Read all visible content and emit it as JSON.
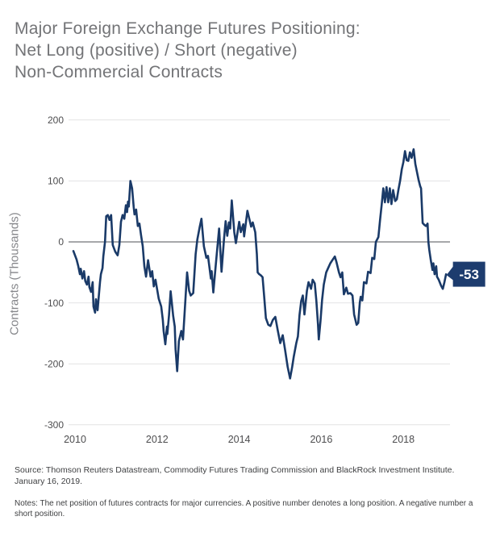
{
  "title": {
    "line1": "Major Foreign Exchange Futures Positioning:",
    "line2": "Net Long (positive) / Short (negative)",
    "line3": "Non-Commercial Contracts"
  },
  "source_line1": "Source: Thomson Reuters Datastream, Commodity Futures Trading Commission and BlackRock Investment Institute.",
  "source_line2": "January 16, 2019.",
  "notes": "Notes: The net position of futures contracts for major currencies. A positive number denotes a long position. A negative number a short position.",
  "colors": {
    "line": "#1a3a68",
    "callout_bg": "#1d3c6e",
    "callout_text": "#ffffff",
    "grid": "#e3e3e4",
    "zero_line": "#8a8b8e",
    "title_text": "#737477",
    "tick_text": "#4d4d4f"
  },
  "chart_data": {
    "type": "line",
    "title": "Major Foreign Exchange Futures Positioning: Net Long (positive) / Short (negative) Non-Commercial Contracts",
    "xlabel": "",
    "ylabel": "Contracts (Thousands)",
    "y_ticks": [
      200,
      100,
      0,
      -100,
      -200,
      -300
    ],
    "x_ticks": [
      2010,
      2012,
      2014,
      2016,
      2018
    ],
    "ylim": [
      -300,
      200
    ],
    "xlim": [
      2009.84,
      2019.17
    ],
    "grid": true,
    "zero_line": true,
    "legend": "none",
    "end_label": "-53",
    "end_value": -53,
    "units": "thousands of contracts",
    "series": [
      {
        "name": "Net non-commercial FX futures contracts",
        "points": [
          [
            2009.96,
            -15
          ],
          [
            2010.04,
            -29
          ],
          [
            2010.08,
            -40
          ],
          [
            2010.12,
            -53
          ],
          [
            2010.14,
            -44
          ],
          [
            2010.18,
            -60
          ],
          [
            2010.22,
            -48
          ],
          [
            2010.25,
            -64
          ],
          [
            2010.29,
            -70
          ],
          [
            2010.33,
            -57
          ],
          [
            2010.35,
            -74
          ],
          [
            2010.39,
            -82
          ],
          [
            2010.43,
            -66
          ],
          [
            2010.45,
            -106
          ],
          [
            2010.49,
            -116
          ],
          [
            2010.51,
            -94
          ],
          [
            2010.55,
            -112
          ],
          [
            2010.61,
            -66
          ],
          [
            2010.63,
            -53
          ],
          [
            2010.67,
            -43
          ],
          [
            2010.69,
            -24
          ],
          [
            2010.73,
            0
          ],
          [
            2010.76,
            42
          ],
          [
            2010.8,
            44
          ],
          [
            2010.84,
            36
          ],
          [
            2010.88,
            44
          ],
          [
            2010.92,
            -5
          ],
          [
            2010.98,
            -16
          ],
          [
            2011.04,
            -22
          ],
          [
            2011.08,
            -5
          ],
          [
            2011.12,
            33
          ],
          [
            2011.16,
            44
          ],
          [
            2011.2,
            38
          ],
          [
            2011.24,
            60
          ],
          [
            2011.27,
            49
          ],
          [
            2011.29,
            66
          ],
          [
            2011.31,
            58
          ],
          [
            2011.35,
            100
          ],
          [
            2011.39,
            88
          ],
          [
            2011.43,
            57
          ],
          [
            2011.45,
            45
          ],
          [
            2011.49,
            53
          ],
          [
            2011.53,
            26
          ],
          [
            2011.57,
            30
          ],
          [
            2011.61,
            11
          ],
          [
            2011.65,
            -7
          ],
          [
            2011.69,
            -40
          ],
          [
            2011.73,
            -57
          ],
          [
            2011.78,
            -30
          ],
          [
            2011.84,
            -57
          ],
          [
            2011.88,
            -48
          ],
          [
            2011.92,
            -73
          ],
          [
            2011.96,
            -62
          ],
          [
            2012.04,
            -93
          ],
          [
            2012.1,
            -106
          ],
          [
            2012.14,
            -128
          ],
          [
            2012.16,
            -146
          ],
          [
            2012.2,
            -168
          ],
          [
            2012.24,
            -139
          ],
          [
            2012.25,
            -151
          ],
          [
            2012.29,
            -120
          ],
          [
            2012.33,
            -81
          ],
          [
            2012.39,
            -121
          ],
          [
            2012.43,
            -139
          ],
          [
            2012.45,
            -176
          ],
          [
            2012.49,
            -212
          ],
          [
            2012.53,
            -163
          ],
          [
            2012.59,
            -146
          ],
          [
            2012.63,
            -160
          ],
          [
            2012.69,
            -95
          ],
          [
            2012.73,
            -50
          ],
          [
            2012.78,
            -80
          ],
          [
            2012.82,
            -88
          ],
          [
            2012.88,
            -84
          ],
          [
            2012.94,
            -20
          ],
          [
            2012.98,
            4
          ],
          [
            2013.04,
            25
          ],
          [
            2013.08,
            38
          ],
          [
            2013.14,
            -7
          ],
          [
            2013.2,
            -26
          ],
          [
            2013.24,
            -23
          ],
          [
            2013.31,
            -60
          ],
          [
            2013.33,
            -48
          ],
          [
            2013.37,
            -83
          ],
          [
            2013.43,
            -37
          ],
          [
            2013.51,
            22
          ],
          [
            2013.57,
            -49
          ],
          [
            2013.63,
            5
          ],
          [
            2013.67,
            34
          ],
          [
            2013.71,
            10
          ],
          [
            2013.75,
            32
          ],
          [
            2013.78,
            22
          ],
          [
            2013.82,
            68
          ],
          [
            2013.88,
            16
          ],
          [
            2013.92,
            -2
          ],
          [
            2014,
            33
          ],
          [
            2014.04,
            16
          ],
          [
            2014.1,
            29
          ],
          [
            2014.12,
            9
          ],
          [
            2014.2,
            51
          ],
          [
            2014.29,
            25
          ],
          [
            2014.33,
            32
          ],
          [
            2014.39,
            16
          ],
          [
            2014.43,
            -20
          ],
          [
            2014.45,
            -50
          ],
          [
            2014.49,
            -53
          ],
          [
            2014.53,
            -55
          ],
          [
            2014.57,
            -58
          ],
          [
            2014.61,
            -90
          ],
          [
            2014.65,
            -125
          ],
          [
            2014.71,
            -136
          ],
          [
            2014.76,
            -138
          ],
          [
            2014.82,
            -128
          ],
          [
            2014.88,
            -123
          ],
          [
            2014.94,
            -145
          ],
          [
            2015,
            -166
          ],
          [
            2015.06,
            -153
          ],
          [
            2015.12,
            -178
          ],
          [
            2015.18,
            -205
          ],
          [
            2015.24,
            -224
          ],
          [
            2015.29,
            -205
          ],
          [
            2015.33,
            -188
          ],
          [
            2015.39,
            -166
          ],
          [
            2015.43,
            -155
          ],
          [
            2015.47,
            -120
          ],
          [
            2015.51,
            -97
          ],
          [
            2015.55,
            -88
          ],
          [
            2015.59,
            -119
          ],
          [
            2015.65,
            -80
          ],
          [
            2015.69,
            -66
          ],
          [
            2015.75,
            -77
          ],
          [
            2015.79,
            -62
          ],
          [
            2015.84,
            -68
          ],
          [
            2015.88,
            -97
          ],
          [
            2015.92,
            -135
          ],
          [
            2015.94,
            -160
          ],
          [
            2015.98,
            -130
          ],
          [
            2016.02,
            -95
          ],
          [
            2016.06,
            -70
          ],
          [
            2016.12,
            -50
          ],
          [
            2016.16,
            -44
          ],
          [
            2016.22,
            -35
          ],
          [
            2016.27,
            -30
          ],
          [
            2016.33,
            -24
          ],
          [
            2016.37,
            -33
          ],
          [
            2016.43,
            -50
          ],
          [
            2016.47,
            -58
          ],
          [
            2016.51,
            -50
          ],
          [
            2016.55,
            -86
          ],
          [
            2016.61,
            -75
          ],
          [
            2016.65,
            -85
          ],
          [
            2016.71,
            -84
          ],
          [
            2016.76,
            -88
          ],
          [
            2016.8,
            -119
          ],
          [
            2016.86,
            -136
          ],
          [
            2016.9,
            -133
          ],
          [
            2016.94,
            -99
          ],
          [
            2016.96,
            -90
          ],
          [
            2017,
            -96
          ],
          [
            2017.04,
            -66
          ],
          [
            2017.1,
            -68
          ],
          [
            2017.14,
            -49
          ],
          [
            2017.2,
            -51
          ],
          [
            2017.24,
            -26
          ],
          [
            2017.29,
            -28
          ],
          [
            2017.33,
            0
          ],
          [
            2017.39,
            8
          ],
          [
            2017.43,
            35
          ],
          [
            2017.47,
            60
          ],
          [
            2017.51,
            88
          ],
          [
            2017.55,
            65
          ],
          [
            2017.59,
            90
          ],
          [
            2017.63,
            65
          ],
          [
            2017.67,
            88
          ],
          [
            2017.71,
            62
          ],
          [
            2017.75,
            85
          ],
          [
            2017.8,
            67
          ],
          [
            2017.84,
            70
          ],
          [
            2017.88,
            86
          ],
          [
            2017.92,
            100
          ],
          [
            2017.96,
            119
          ],
          [
            2018,
            131
          ],
          [
            2018.04,
            149
          ],
          [
            2018.08,
            134
          ],
          [
            2018.12,
            133
          ],
          [
            2018.16,
            147
          ],
          [
            2018.2,
            138
          ],
          [
            2018.25,
            152
          ],
          [
            2018.29,
            128
          ],
          [
            2018.33,
            115
          ],
          [
            2018.37,
            102
          ],
          [
            2018.41,
            91
          ],
          [
            2018.43,
            88
          ],
          [
            2018.47,
            31
          ],
          [
            2018.51,
            28
          ],
          [
            2018.55,
            26
          ],
          [
            2018.59,
            30
          ],
          [
            2018.61,
            0
          ],
          [
            2018.63,
            -13
          ],
          [
            2018.67,
            -31
          ],
          [
            2018.71,
            -46
          ],
          [
            2018.73,
            -35
          ],
          [
            2018.76,
            -53
          ],
          [
            2018.8,
            -40
          ],
          [
            2018.82,
            -57
          ],
          [
            2018.86,
            -62
          ],
          [
            2018.92,
            -72
          ],
          [
            2018.96,
            -77
          ],
          [
            2019,
            -66
          ],
          [
            2019.04,
            -53
          ]
        ]
      }
    ]
  }
}
